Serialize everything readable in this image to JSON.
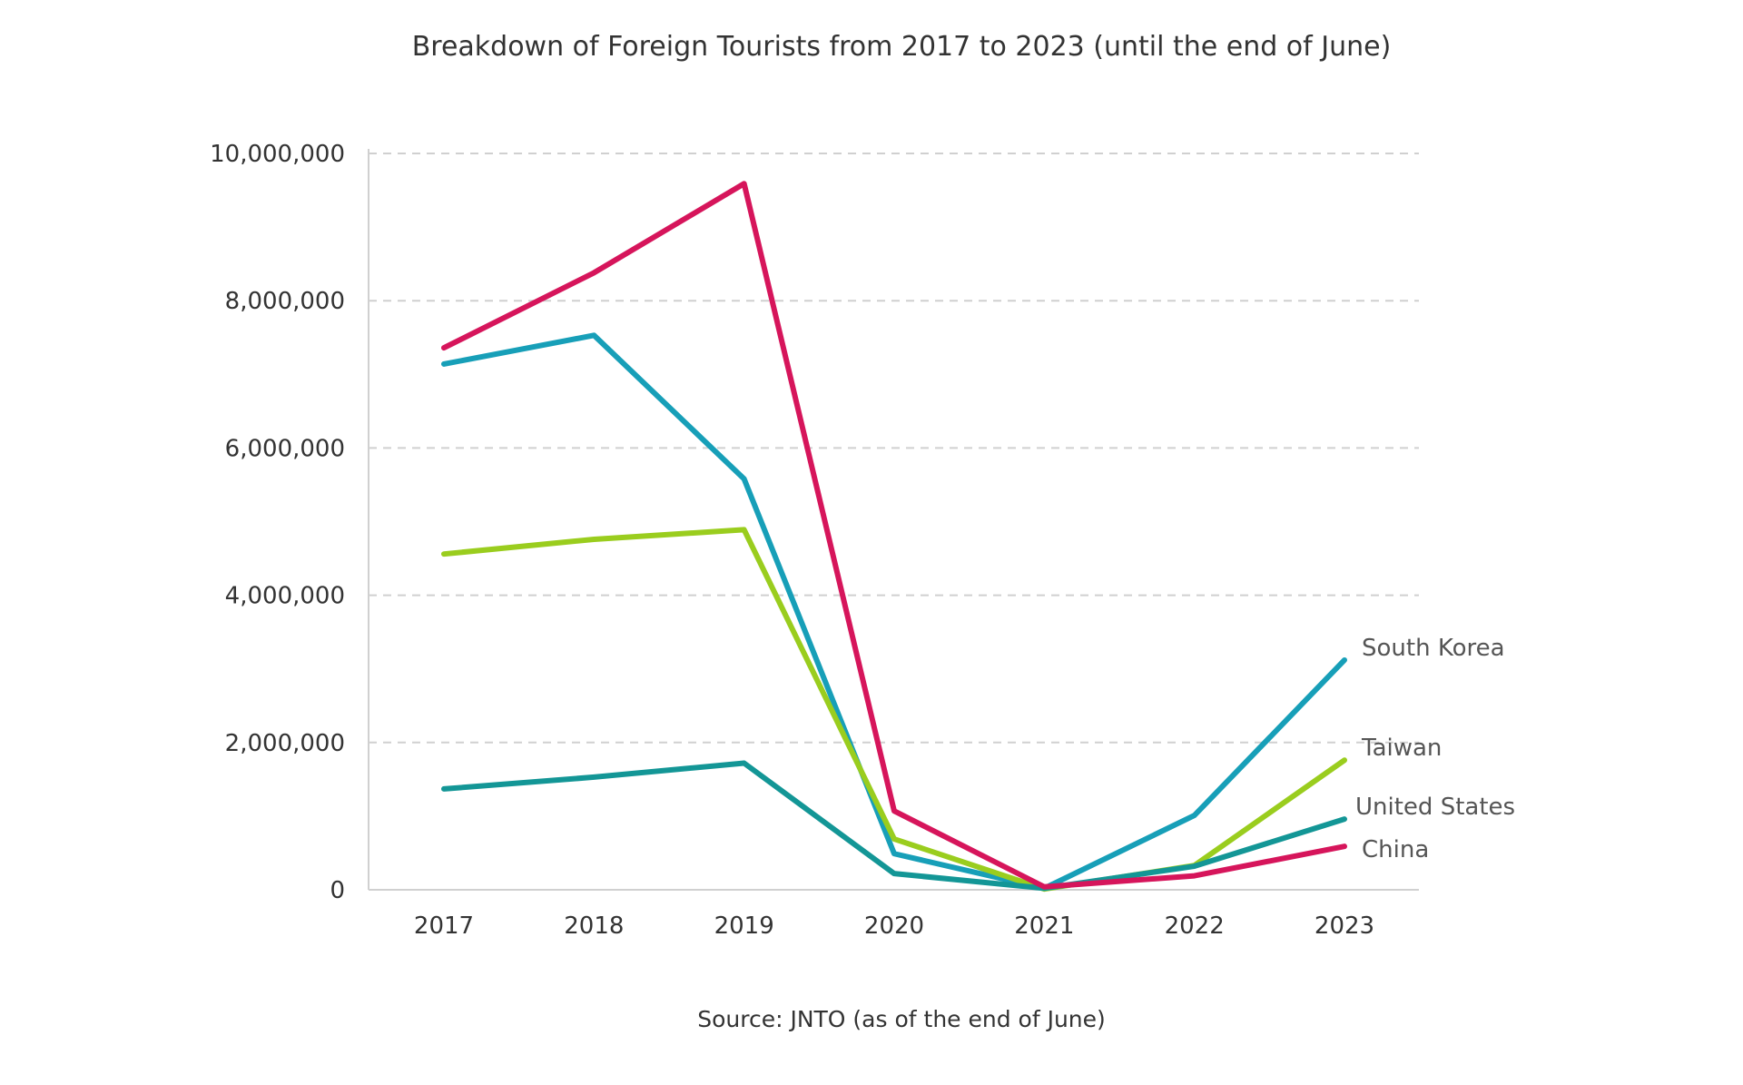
{
  "chart_data": {
    "type": "line",
    "title": "Breakdown of Foreign Tourists from 2017 to 2023 (until the end of June)",
    "source": "Source: JNTO (as of the end of June)",
    "xlabel": "",
    "ylabel": "",
    "categories": [
      "2017",
      "2018",
      "2019",
      "2020",
      "2021",
      "2022",
      "2023"
    ],
    "ylim": [
      0,
      10000000
    ],
    "yticks": [
      0,
      2000000,
      4000000,
      6000000,
      8000000,
      10000000
    ],
    "ytick_labels": [
      "0",
      "2,000,000",
      "4,000,000",
      "6,000,000",
      "8,000,000",
      "10,000,000"
    ],
    "grid": "horizontal dashed",
    "legend": "inline labels at line ends (right)",
    "series": [
      {
        "name": "South Korea",
        "color": "#179fb8",
        "values": [
          7140000,
          7530000,
          5580000,
          490000,
          20000,
          1010000,
          3120000
        ]
      },
      {
        "name": "Taiwan",
        "color": "#9acd1e",
        "values": [
          4560000,
          4760000,
          4890000,
          690000,
          10000,
          330000,
          1760000
        ]
      },
      {
        "name": "United States",
        "color": "#139696",
        "values": [
          1370000,
          1530000,
          1720000,
          220000,
          20000,
          320000,
          960000
        ]
      },
      {
        "name": "China",
        "color": "#d6155b",
        "values": [
          7360000,
          8380000,
          9590000,
          1070000,
          40000,
          190000,
          590000
        ]
      }
    ]
  }
}
